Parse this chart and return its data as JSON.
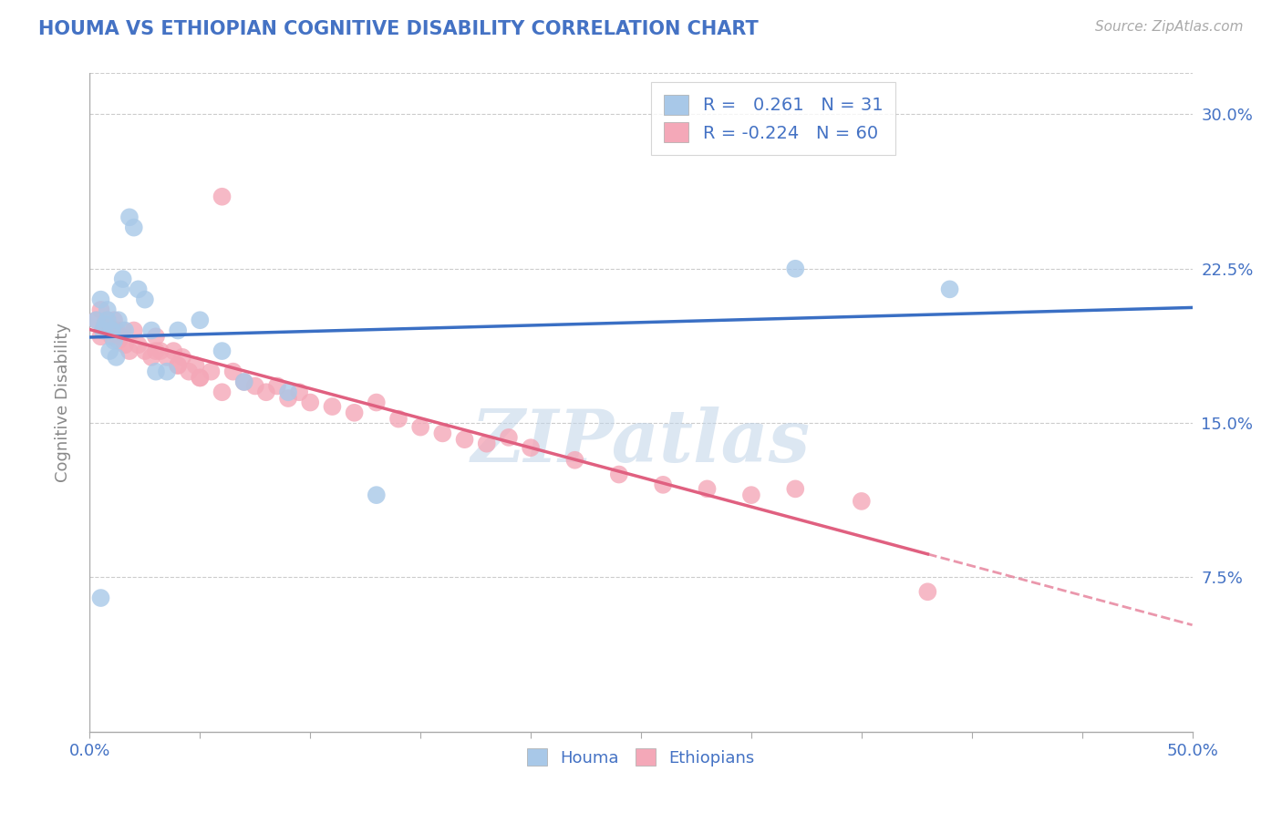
{
  "title": "HOUMA VS ETHIOPIAN COGNITIVE DISABILITY CORRELATION CHART",
  "source": "Source: ZipAtlas.com",
  "ylabel": "Cognitive Disability",
  "xlim": [
    0.0,
    0.5
  ],
  "ylim": [
    0.0,
    0.32
  ],
  "xticks": [
    0.0,
    0.05,
    0.1,
    0.15,
    0.2,
    0.25,
    0.3,
    0.35,
    0.4,
    0.45,
    0.5
  ],
  "xtick_labels_shown": [
    "0.0%",
    "",
    "",
    "",
    "",
    "",
    "",
    "",
    "",
    "",
    "50.0%"
  ],
  "yticks": [
    0.075,
    0.15,
    0.225,
    0.3
  ],
  "ytick_labels": [
    "7.5%",
    "15.0%",
    "22.5%",
    "30.0%"
  ],
  "houma_color": "#A8C8E8",
  "ethiopian_color": "#F4A8B8",
  "houma_R": 0.261,
  "houma_N": 31,
  "ethiopian_R": -0.224,
  "ethiopian_N": 60,
  "houma_line_color": "#3A6FC4",
  "ethiopian_line_color": "#E06080",
  "watermark": "ZIPatlas",
  "legend_color": "#4472C4",
  "houma_x": [
    0.003,
    0.005,
    0.006,
    0.007,
    0.008,
    0.009,
    0.01,
    0.011,
    0.012,
    0.013,
    0.014,
    0.015,
    0.016,
    0.018,
    0.02,
    0.022,
    0.025,
    0.028,
    0.03,
    0.035,
    0.04,
    0.05,
    0.06,
    0.07,
    0.09,
    0.13,
    0.32,
    0.39,
    0.005,
    0.008,
    0.01
  ],
  "houma_y": [
    0.2,
    0.21,
    0.195,
    0.198,
    0.205,
    0.185,
    0.195,
    0.19,
    0.182,
    0.2,
    0.215,
    0.22,
    0.195,
    0.25,
    0.245,
    0.215,
    0.21,
    0.195,
    0.175,
    0.175,
    0.195,
    0.2,
    0.185,
    0.17,
    0.165,
    0.115,
    0.225,
    0.215,
    0.065,
    0.2,
    0.195
  ],
  "ethiopian_x": [
    0.003,
    0.005,
    0.006,
    0.007,
    0.008,
    0.009,
    0.01,
    0.011,
    0.012,
    0.013,
    0.014,
    0.015,
    0.016,
    0.018,
    0.02,
    0.022,
    0.025,
    0.028,
    0.03,
    0.032,
    0.035,
    0.038,
    0.04,
    0.042,
    0.045,
    0.048,
    0.05,
    0.055,
    0.06,
    0.065,
    0.07,
    0.075,
    0.08,
    0.085,
    0.09,
    0.095,
    0.1,
    0.11,
    0.12,
    0.13,
    0.14,
    0.15,
    0.16,
    0.17,
    0.18,
    0.19,
    0.2,
    0.22,
    0.24,
    0.26,
    0.28,
    0.3,
    0.32,
    0.35,
    0.03,
    0.04,
    0.05,
    0.06,
    0.38,
    0.005
  ],
  "ethiopian_y": [
    0.2,
    0.205,
    0.195,
    0.198,
    0.2,
    0.195,
    0.192,
    0.2,
    0.195,
    0.19,
    0.192,
    0.195,
    0.188,
    0.185,
    0.195,
    0.188,
    0.185,
    0.182,
    0.192,
    0.185,
    0.182,
    0.185,
    0.178,
    0.182,
    0.175,
    0.178,
    0.172,
    0.175,
    0.26,
    0.175,
    0.17,
    0.168,
    0.165,
    0.168,
    0.162,
    0.165,
    0.16,
    0.158,
    0.155,
    0.16,
    0.152,
    0.148,
    0.145,
    0.142,
    0.14,
    0.143,
    0.138,
    0.132,
    0.125,
    0.12,
    0.118,
    0.115,
    0.118,
    0.112,
    0.185,
    0.178,
    0.172,
    0.165,
    0.068,
    0.192
  ],
  "background_color": "#FFFFFF",
  "grid_color": "#CCCCCC",
  "title_color": "#4472C4",
  "axis_label_color": "#888888"
}
